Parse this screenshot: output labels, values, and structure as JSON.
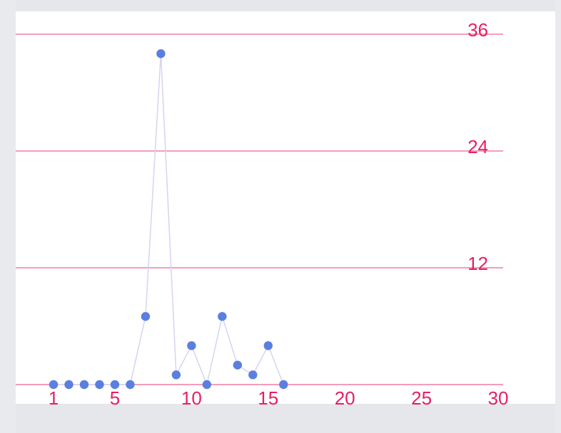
{
  "chart_data": {
    "type": "line",
    "title": "",
    "xlabel": "",
    "ylabel": "",
    "x": [
      1,
      2,
      3,
      4,
      5,
      6,
      7,
      8,
      9,
      10,
      11,
      12,
      13,
      14,
      15,
      16
    ],
    "values": [
      0,
      0,
      0,
      0,
      0,
      0,
      7,
      34,
      1,
      4,
      0,
      7,
      2,
      1,
      4,
      0
    ],
    "xlim": [
      1,
      30
    ],
    "ylim": [
      0,
      36
    ],
    "x_ticks": [
      "1",
      "5",
      "10",
      "15",
      "20",
      "25",
      "30"
    ],
    "y_ticks": [
      "12",
      "24",
      "36"
    ],
    "grid": "horizontal",
    "colors": {
      "grid": "#f06292",
      "tick_labels": "#e91e63",
      "line": "#d4d4f2",
      "points": "#5b7fe0"
    }
  }
}
